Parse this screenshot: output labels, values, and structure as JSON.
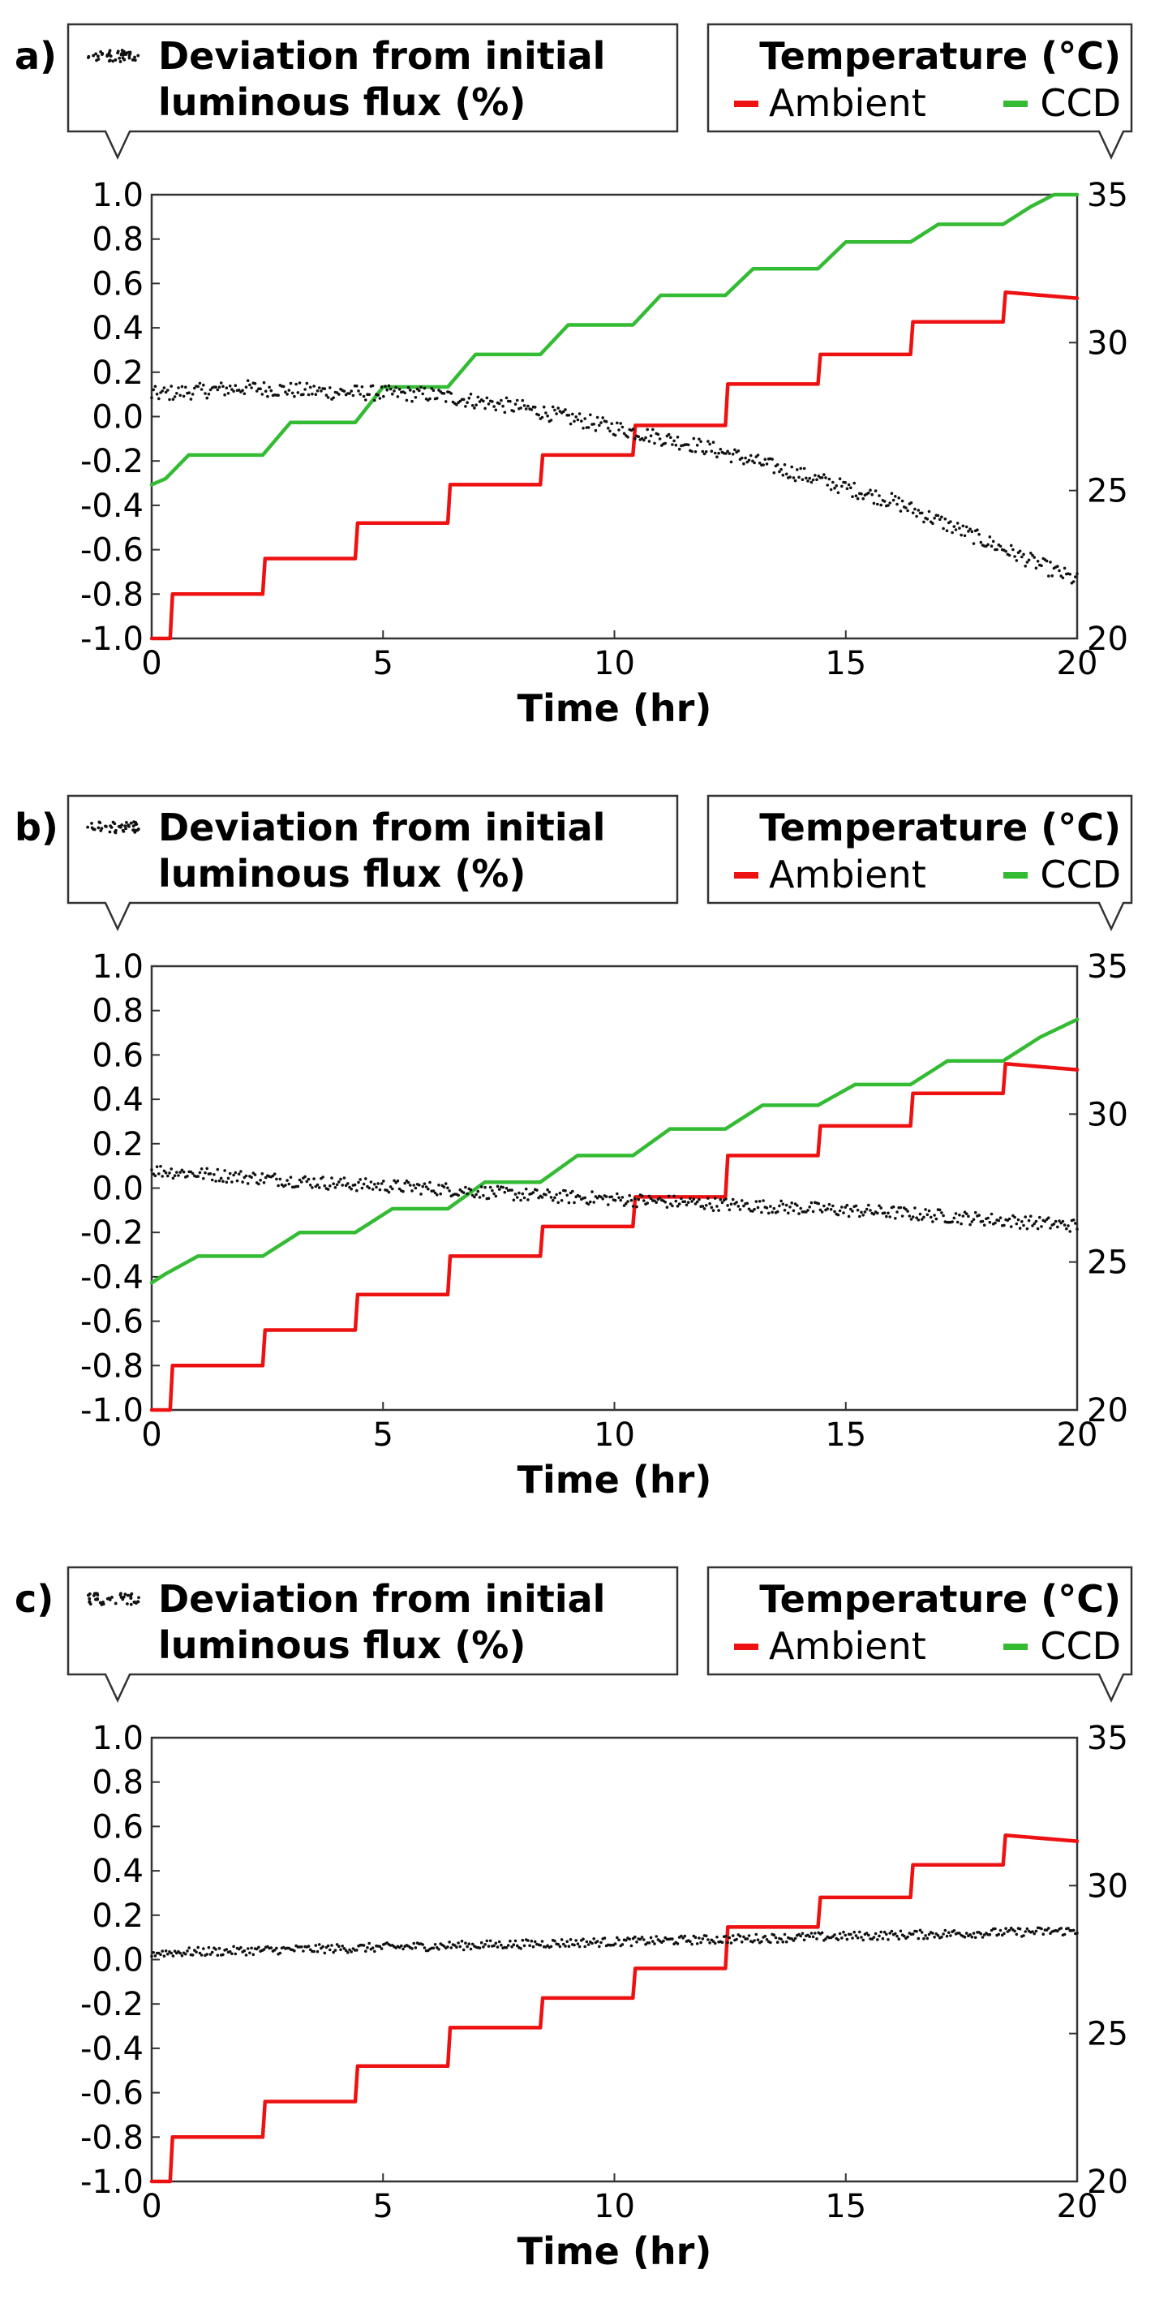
{
  "colors": {
    "ambient": "#ee1111",
    "ccd": "#33bb33",
    "flux": "#111111",
    "frame": "#333333",
    "text": "#000000"
  },
  "legend": {
    "flux_line1": "Deviation from initial",
    "flux_line2": "luminous flux (%)",
    "temp_title": "Temperature (°C)",
    "ambient": "Ambient",
    "ccd": "CCD"
  },
  "chart_data": [
    {
      "panel_label": "a)",
      "type": "line",
      "xlabel": "Time (hr)",
      "xlim": [
        0,
        20
      ],
      "x_ticks": [
        "0",
        "5",
        "10",
        "15",
        "20"
      ],
      "ylim_left": [
        -1.0,
        1.0
      ],
      "y_ticks_left": [
        "1.0",
        "0.8",
        "0.6",
        "0.4",
        "0.2",
        "0.0",
        "-0.2",
        "-0.4",
        "-0.6",
        "-0.8",
        "-1.0"
      ],
      "ylim_right": [
        20,
        35
      ],
      "y_ticks_right": [
        "35",
        "30",
        "25",
        "20"
      ],
      "grid": false,
      "series": [
        {
          "name": "Ambient",
          "axis": "right",
          "style": "step",
          "x": [
            0,
            0.4,
            0.45,
            2.4,
            2.45,
            4.4,
            4.45,
            6.4,
            6.45,
            8.4,
            8.45,
            10.4,
            10.45,
            12.4,
            12.45,
            14.4,
            14.45,
            16.4,
            16.45,
            18.4,
            18.45,
            20
          ],
          "y": [
            20.0,
            20.0,
            21.5,
            21.5,
            22.7,
            22.7,
            23.9,
            23.9,
            25.2,
            25.2,
            26.2,
            26.2,
            27.2,
            27.2,
            28.6,
            28.6,
            29.6,
            29.6,
            30.7,
            30.7,
            31.7,
            31.5
          ]
        },
        {
          "name": "CCD",
          "axis": "right",
          "style": "step",
          "x": [
            0,
            0.3,
            0.8,
            2.4,
            3.0,
            4.4,
            5.0,
            6.4,
            7.0,
            8.4,
            9.0,
            10.4,
            11.0,
            12.4,
            13.0,
            14.4,
            15.0,
            16.4,
            17.0,
            18.4,
            19.0,
            19.5,
            20
          ],
          "y": [
            25.2,
            25.4,
            26.2,
            26.2,
            27.3,
            27.3,
            28.5,
            28.5,
            29.6,
            29.6,
            30.6,
            30.6,
            31.6,
            31.6,
            32.5,
            32.5,
            33.4,
            33.4,
            34.0,
            34.0,
            34.6,
            35.0,
            35.0
          ]
        },
        {
          "name": "Deviation from initial luminous flux",
          "axis": "left",
          "style": "dots",
          "x": [
            0,
            2,
            4,
            6,
            8,
            10,
            12,
            14,
            16,
            18,
            20
          ],
          "y": [
            0.1,
            0.13,
            0.11,
            0.1,
            0.04,
            -0.05,
            -0.14,
            -0.26,
            -0.38,
            -0.56,
            -0.74
          ],
          "noise": 0.035
        }
      ]
    },
    {
      "panel_label": "b)",
      "type": "line",
      "xlabel": "Time (hr)",
      "xlim": [
        0,
        20
      ],
      "x_ticks": [
        "0",
        "5",
        "10",
        "15",
        "20"
      ],
      "ylim_left": [
        -1.0,
        1.0
      ],
      "y_ticks_left": [
        "1.0",
        "0.8",
        "0.6",
        "0.4",
        "0.2",
        "0.0",
        "-0.2",
        "-0.4",
        "-0.6",
        "-0.8",
        "-1.0"
      ],
      "ylim_right": [
        20,
        35
      ],
      "y_ticks_right": [
        "35",
        "30",
        "25",
        "20"
      ],
      "grid": false,
      "series": [
        {
          "name": "Ambient",
          "axis": "right",
          "style": "step",
          "x": [
            0,
            0.4,
            0.45,
            2.4,
            2.45,
            4.4,
            4.45,
            6.4,
            6.45,
            8.4,
            8.45,
            10.4,
            10.45,
            12.4,
            12.45,
            14.4,
            14.45,
            16.4,
            16.45,
            18.4,
            18.45,
            20
          ],
          "y": [
            20.0,
            20.0,
            21.5,
            21.5,
            22.7,
            22.7,
            23.9,
            23.9,
            25.2,
            25.2,
            26.2,
            26.2,
            27.2,
            27.2,
            28.6,
            28.6,
            29.6,
            29.6,
            30.7,
            30.7,
            31.7,
            31.5
          ]
        },
        {
          "name": "CCD",
          "axis": "right",
          "style": "step",
          "x": [
            0,
            0.3,
            1.0,
            2.4,
            3.2,
            4.4,
            5.2,
            6.4,
            7.2,
            8.4,
            9.2,
            10.4,
            11.2,
            12.4,
            13.2,
            14.4,
            15.2,
            16.4,
            17.2,
            18.4,
            19.2,
            20
          ],
          "y": [
            24.3,
            24.6,
            25.2,
            25.2,
            26.0,
            26.0,
            26.8,
            26.8,
            27.7,
            27.7,
            28.6,
            28.6,
            29.5,
            29.5,
            30.3,
            30.3,
            31.0,
            31.0,
            31.8,
            31.8,
            32.6,
            33.2
          ]
        },
        {
          "name": "Deviation from initial luminous flux",
          "axis": "left",
          "style": "dots",
          "x": [
            0,
            2,
            4,
            6,
            8,
            10,
            12,
            14,
            16,
            18,
            20
          ],
          "y": [
            0.08,
            0.05,
            0.02,
            0.0,
            -0.03,
            -0.05,
            -0.07,
            -0.09,
            -0.11,
            -0.14,
            -0.17
          ],
          "noise": 0.03
        }
      ]
    },
    {
      "panel_label": "c)",
      "type": "line",
      "xlabel": "Time (hr)",
      "xlim": [
        0,
        20
      ],
      "x_ticks": [
        "0",
        "5",
        "10",
        "15",
        "20"
      ],
      "ylim_left": [
        -1.0,
        1.0
      ],
      "y_ticks_left": [
        "1.0",
        "0.8",
        "0.6",
        "0.4",
        "0.2",
        "0.0",
        "-0.2",
        "-0.4",
        "-0.6",
        "-0.8",
        "-1.0"
      ],
      "ylim_right": [
        20,
        35
      ],
      "y_ticks_right": [
        "35",
        "30",
        "25",
        "20"
      ],
      "grid": false,
      "series": [
        {
          "name": "Ambient",
          "axis": "right",
          "style": "step",
          "x": [
            0,
            0.4,
            0.45,
            2.4,
            2.45,
            4.4,
            4.45,
            6.4,
            6.45,
            8.4,
            8.45,
            10.4,
            10.45,
            12.4,
            12.45,
            14.4,
            14.45,
            16.4,
            16.45,
            18.4,
            18.45,
            20
          ],
          "y": [
            20.0,
            20.0,
            21.5,
            21.5,
            22.7,
            22.7,
            23.9,
            23.9,
            25.2,
            25.2,
            26.2,
            26.2,
            27.2,
            27.2,
            28.6,
            28.6,
            29.6,
            29.6,
            30.7,
            30.7,
            31.7,
            31.5
          ]
        },
        {
          "name": "Deviation from initial luminous flux",
          "axis": "left",
          "style": "dots",
          "x": [
            0,
            2,
            4,
            6,
            8,
            10,
            12,
            14,
            16,
            18,
            20
          ],
          "y": [
            0.03,
            0.04,
            0.05,
            0.06,
            0.07,
            0.08,
            0.09,
            0.1,
            0.11,
            0.12,
            0.13
          ],
          "noise": 0.02
        }
      ]
    }
  ]
}
